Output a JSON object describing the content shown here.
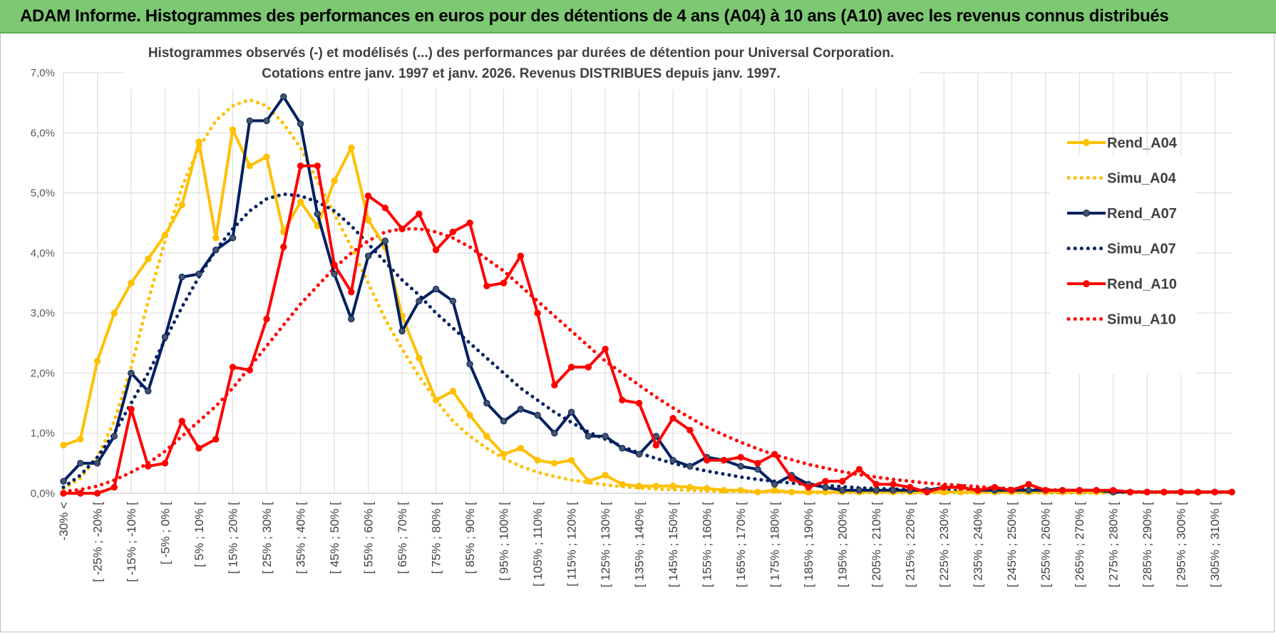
{
  "banner": {
    "title": "ADAM Informe. Histogrammes des performances en euros pour des détentions de 4 ans (A04) à 10 ans (A10) avec les revenus connus distribués",
    "color": "#7dc873"
  },
  "chart_data": {
    "type": "line",
    "title_line1": "Histogrammes observés (-) et modélisés (...) des performances par durées de détention pour Universal Corporation.",
    "title_line2": "Cotations entre janv. 1997 et janv. 2026. Revenus DISTRIBUES depuis janv. 1997.",
    "ylim": [
      0,
      7
    ],
    "yticks": [
      "0,0%",
      "1,0%",
      "2,0%",
      "3,0%",
      "4,0%",
      "5,0%",
      "6,0%",
      "7,0%"
    ],
    "xticks": [
      "-30% <",
      "[ -25% ; -20% [",
      "[ -15% ; -10% [",
      "[ -5% ; 0% [",
      "[ 5% ; 10% [",
      "[ 15% ; 20% [",
      "[ 25% ; 30% [",
      "[ 35% ; 40% [",
      "[ 45% ; 50% [",
      "[ 55% ; 60% [",
      "[ 65% ; 70% [",
      "[ 75% ; 80% [",
      "[ 85% ; 90% [",
      "[ 95% ; 100% [",
      "[ 105% ; 110% [",
      "[ 115% ; 120% [",
      "[ 125% ; 130% [",
      "[ 135% ; 140% [",
      "[ 145% ; 150% [",
      "[ 155% ; 160% [",
      "[ 165% ; 170% [",
      "[ 175% ; 180% [",
      "[ 185% ; 190% [",
      "[ 195% ; 200% [",
      "[ 205% ; 210% [",
      "[ 215% ; 220% [",
      "[ 225% ; 230% [",
      "[ 235% ; 240% [",
      "[ 245% ; 250% [",
      "[ 255% ; 260% [",
      "[ 265% ; 270% [",
      "[ 275% ; 280% [",
      "[ 285% ; 290% [",
      "[ 295% ; 300% [",
      "[ 305% ; 310% ["
    ],
    "n_points": 70,
    "series": [
      {
        "name": "Rend_A04",
        "color": "#ffc000",
        "style": "solid",
        "markers": true,
        "values": [
          0.8,
          0.9,
          2.2,
          3.0,
          3.5,
          3.9,
          4.3,
          4.8,
          5.85,
          4.25,
          6.05,
          5.45,
          5.6,
          4.35,
          4.85,
          4.45,
          5.2,
          5.75,
          4.55,
          4.1,
          2.95,
          2.25,
          1.55,
          1.7,
          1.3,
          0.95,
          0.65,
          0.75,
          0.55,
          0.5,
          0.55,
          0.2,
          0.3,
          0.15,
          0.12,
          0.12,
          0.12,
          0.1,
          0.08,
          0.05,
          0.05,
          0.02,
          0.05,
          0.02,
          0.02,
          0.02,
          0.02,
          0.02,
          0.02,
          0.02,
          0.02,
          0.02,
          0.02,
          0.02,
          0.02,
          0.02,
          0.02,
          0.02,
          0.02,
          0.02,
          0.02,
          0.02,
          0.02,
          0.02,
          0.02,
          0.02,
          0.02,
          0.02,
          0.02,
          0.02
        ]
      },
      {
        "name": "Simu_A04",
        "color": "#ffc000",
        "style": "dotted",
        "markers": false,
        "values": [
          0.08,
          0.25,
          0.6,
          1.2,
          2.1,
          3.2,
          4.2,
          5.1,
          5.75,
          6.2,
          6.45,
          6.55,
          6.45,
          6.15,
          5.75,
          5.2,
          4.65,
          4.1,
          3.5,
          2.9,
          2.4,
          1.95,
          1.55,
          1.2,
          0.95,
          0.75,
          0.58,
          0.45,
          0.35,
          0.28,
          0.22,
          0.18,
          0.14,
          0.11,
          0.09,
          0.07,
          0.06,
          0.05,
          0.04,
          0.03,
          0.03,
          0.02,
          0.02,
          0.02,
          0.01,
          0.01,
          0.01,
          0.01,
          0.01,
          0.01,
          0.01,
          0.01,
          0.01,
          0.01,
          0.01,
          0.01,
          0.01,
          0.01,
          0.01,
          0.01,
          0.01,
          0.01,
          0.01,
          0.01,
          0.01,
          0.01,
          0.01,
          0.01,
          0.01,
          0.01
        ]
      },
      {
        "name": "Rend_A07",
        "color": "#002060",
        "style": "solid",
        "markers": true,
        "values": [
          0.2,
          0.5,
          0.5,
          0.95,
          2.0,
          1.7,
          2.6,
          3.6,
          3.65,
          4.05,
          4.25,
          6.2,
          6.2,
          6.6,
          6.15,
          4.65,
          3.65,
          2.9,
          3.95,
          4.2,
          2.7,
          3.2,
          3.4,
          3.2,
          2.15,
          1.5,
          1.2,
          1.4,
          1.3,
          1.0,
          1.35,
          0.95,
          0.95,
          0.75,
          0.65,
          0.95,
          0.55,
          0.45,
          0.6,
          0.55,
          0.45,
          0.4,
          0.15,
          0.3,
          0.15,
          0.1,
          0.05,
          0.05,
          0.05,
          0.05,
          0.05,
          0.05,
          0.1,
          0.1,
          0.05,
          0.05,
          0.05,
          0.05,
          0.05,
          0.05,
          0.05,
          0.05,
          0.02,
          0.02,
          0.02,
          0.02,
          0.02,
          0.02,
          0.02,
          0.02
        ]
      },
      {
        "name": "Simu_A07",
        "color": "#002060",
        "style": "dotted",
        "markers": false,
        "values": [
          0.1,
          0.3,
          0.6,
          1.0,
          1.5,
          2.0,
          2.55,
          3.1,
          3.6,
          4.05,
          4.4,
          4.7,
          4.9,
          4.98,
          4.95,
          4.85,
          4.7,
          4.45,
          4.15,
          3.85,
          3.55,
          3.3,
          3.0,
          2.75,
          2.5,
          2.25,
          2.0,
          1.75,
          1.55,
          1.35,
          1.18,
          1.02,
          0.9,
          0.78,
          0.67,
          0.58,
          0.5,
          0.43,
          0.37,
          0.32,
          0.27,
          0.23,
          0.2,
          0.17,
          0.15,
          0.13,
          0.11,
          0.09,
          0.08,
          0.07,
          0.06,
          0.05,
          0.05,
          0.04,
          0.04,
          0.03,
          0.03,
          0.03,
          0.02,
          0.02,
          0.02,
          0.02,
          0.02,
          0.02,
          0.02,
          0.02,
          0.02,
          0.02,
          0.02,
          0.02
        ]
      },
      {
        "name": "Rend_A10",
        "color": "#ff0000",
        "style": "solid",
        "markers": true,
        "values": [
          0.0,
          0.0,
          0.0,
          0.1,
          1.4,
          0.45,
          0.5,
          1.2,
          0.75,
          0.9,
          2.1,
          2.05,
          2.9,
          4.1,
          5.45,
          5.45,
          3.8,
          3.35,
          4.95,
          4.75,
          4.4,
          4.65,
          4.05,
          4.35,
          4.5,
          3.45,
          3.5,
          3.95,
          3.0,
          1.8,
          2.1,
          2.1,
          2.4,
          1.55,
          1.5,
          0.8,
          1.25,
          1.05,
          0.55,
          0.55,
          0.6,
          0.5,
          0.65,
          0.25,
          0.1,
          0.2,
          0.2,
          0.4,
          0.15,
          0.15,
          0.1,
          0.02,
          0.1,
          0.1,
          0.05,
          0.1,
          0.05,
          0.15,
          0.05,
          0.05,
          0.05,
          0.05,
          0.05,
          0.02,
          0.02,
          0.02,
          0.02,
          0.02,
          0.02,
          0.02
        ]
      },
      {
        "name": "Simu_A10",
        "color": "#ff0000",
        "style": "dotted",
        "markers": false,
        "values": [
          0.03,
          0.06,
          0.12,
          0.22,
          0.35,
          0.5,
          0.7,
          0.95,
          1.2,
          1.45,
          1.75,
          2.1,
          2.45,
          2.8,
          3.15,
          3.45,
          3.75,
          4.0,
          4.2,
          4.35,
          4.4,
          4.4,
          4.35,
          4.25,
          4.1,
          3.9,
          3.7,
          3.45,
          3.2,
          2.95,
          2.7,
          2.45,
          2.2,
          2.0,
          1.8,
          1.6,
          1.42,
          1.26,
          1.1,
          0.97,
          0.85,
          0.74,
          0.64,
          0.56,
          0.48,
          0.42,
          0.36,
          0.31,
          0.27,
          0.23,
          0.2,
          0.17,
          0.15,
          0.13,
          0.11,
          0.09,
          0.08,
          0.07,
          0.06,
          0.05,
          0.04,
          0.04,
          0.03,
          0.03,
          0.02,
          0.02,
          0.02,
          0.02,
          0.02,
          0.02
        ]
      }
    ],
    "legend_position": "right"
  }
}
